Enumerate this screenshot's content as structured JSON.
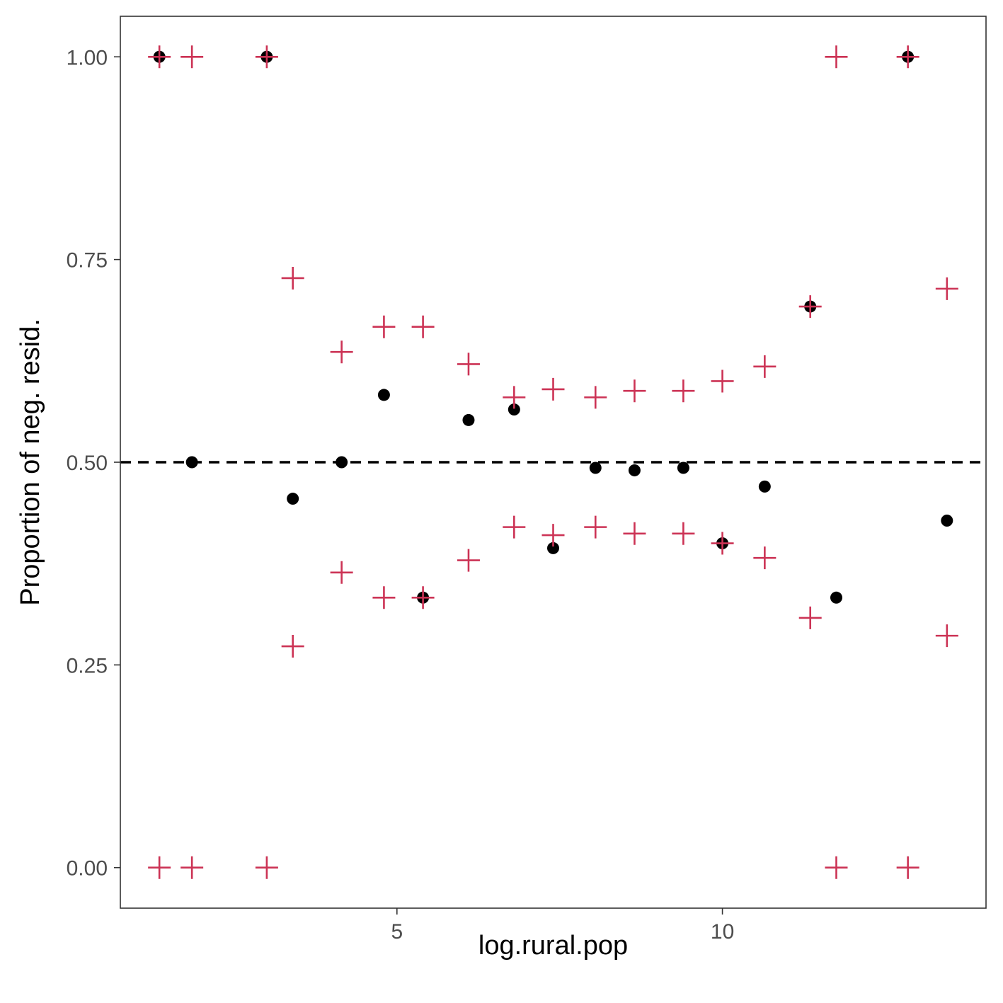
{
  "chart_data": {
    "type": "scatter",
    "title": "",
    "xlabel": "log.rural.pop",
    "ylabel": "Proportion of neg. resid.",
    "xlim": [
      0.75,
      14.05
    ],
    "ylim": [
      -0.05,
      1.05
    ],
    "x_ticks": [
      5,
      10
    ],
    "x_tick_labels": [
      "5",
      "10"
    ],
    "y_ticks": [
      0,
      0.25,
      0.5,
      0.75,
      1.0
    ],
    "y_tick_labels": [
      "0.00",
      "0.25",
      "0.50",
      "0.75",
      "1.00"
    ],
    "reference_line": {
      "y": 0.5,
      "style": "dashed",
      "color": "#000000"
    },
    "grid": false,
    "series": [
      {
        "marker": "point",
        "color": "#000000",
        "points": [
          [
            1.35,
            1.0
          ],
          [
            1.85,
            0.5
          ],
          [
            3.0,
            1.0
          ],
          [
            3.4,
            0.455
          ],
          [
            4.15,
            0.5
          ],
          [
            4.8,
            0.583
          ],
          [
            5.4,
            0.333
          ],
          [
            6.1,
            0.552
          ],
          [
            6.8,
            0.565
          ],
          [
            7.4,
            0.394
          ],
          [
            8.05,
            0.493
          ],
          [
            8.65,
            0.49
          ],
          [
            9.4,
            0.493
          ],
          [
            10.0,
            0.4
          ],
          [
            10.65,
            0.47
          ],
          [
            11.35,
            0.692
          ],
          [
            11.75,
            0.333
          ],
          [
            12.85,
            1.0
          ],
          [
            13.45,
            0.428
          ]
        ]
      },
      {
        "marker": "plus",
        "color": "#cc3355",
        "points": [
          [
            1.35,
            1.0
          ],
          [
            1.35,
            0.0
          ],
          [
            1.85,
            1.0
          ],
          [
            1.85,
            0.0
          ],
          [
            3.0,
            1.0
          ],
          [
            3.0,
            0.0
          ],
          [
            3.4,
            0.727
          ],
          [
            3.4,
            0.273
          ],
          [
            4.15,
            0.636
          ],
          [
            4.15,
            0.364
          ],
          [
            4.8,
            0.667
          ],
          [
            4.8,
            0.333
          ],
          [
            5.4,
            0.667
          ],
          [
            5.4,
            0.333
          ],
          [
            6.1,
            0.621
          ],
          [
            6.1,
            0.379
          ],
          [
            6.8,
            0.58
          ],
          [
            6.8,
            0.42
          ],
          [
            7.4,
            0.59
          ],
          [
            7.4,
            0.41
          ],
          [
            8.05,
            0.58
          ],
          [
            8.05,
            0.42
          ],
          [
            8.65,
            0.588
          ],
          [
            8.65,
            0.412
          ],
          [
            9.4,
            0.588
          ],
          [
            9.4,
            0.412
          ],
          [
            10.0,
            0.6
          ],
          [
            10.0,
            0.4
          ],
          [
            10.65,
            0.618
          ],
          [
            10.65,
            0.382
          ],
          [
            11.35,
            0.692
          ],
          [
            11.35,
            0.308
          ],
          [
            11.75,
            1.0
          ],
          [
            11.75,
            0.0
          ],
          [
            12.85,
            1.0
          ],
          [
            12.85,
            0.0
          ],
          [
            13.45,
            0.714
          ],
          [
            13.45,
            0.286
          ]
        ]
      }
    ]
  }
}
